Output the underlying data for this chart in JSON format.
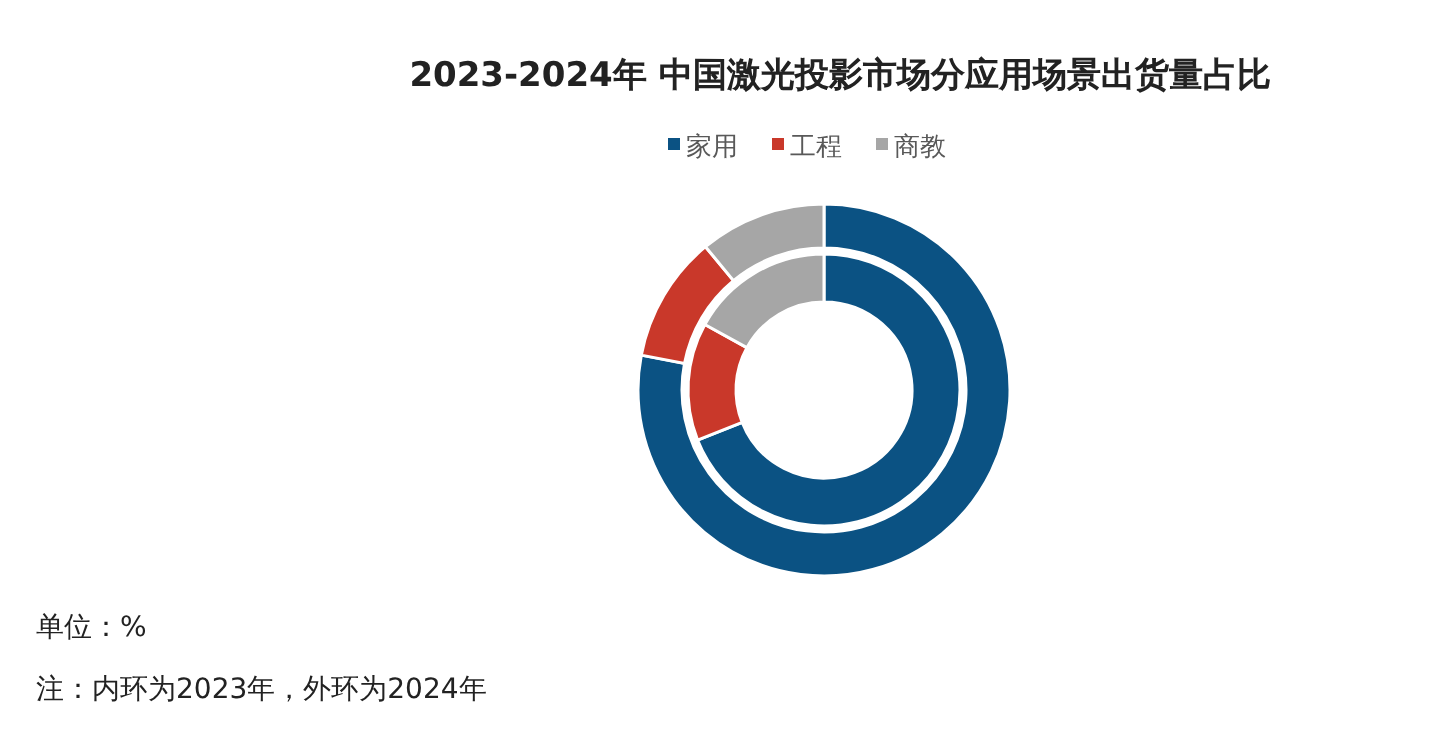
{
  "chart_data": {
    "type": "donut",
    "title": "2023-2024年 中国激光投影市场分应用场景出货量占比",
    "categories": [
      "家用",
      "工程",
      "商教"
    ],
    "colors": [
      "#0b5283",
      "#c9382a",
      "#a6a6a6"
    ],
    "series": [
      {
        "values": [
          69,
          14,
          17
        ]
      },
      {
        "values": [
          78,
          11,
          11
        ]
      }
    ],
    "legend": "top",
    "annotations": [
      "单位：%",
      "注：内环为2023年，外环为2024年"
    ]
  }
}
